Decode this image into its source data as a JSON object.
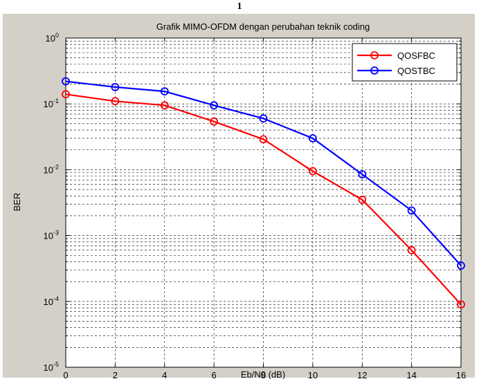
{
  "figure_number": "1",
  "chart_data": {
    "type": "line",
    "title": "Grafik MIMO-OFDM dengan perubahan teknik coding",
    "xlabel": "Eb/N0 (dB)",
    "ylabel": "BER",
    "xlim": [
      0,
      16
    ],
    "ylim": [
      1e-05,
      1
    ],
    "yscale": "log",
    "grid": true,
    "legend_position": "top-right",
    "x": [
      0,
      2,
      4,
      6,
      8,
      10,
      12,
      14,
      16
    ],
    "x_ticks": [
      "0",
      "2",
      "4",
      "6",
      "8",
      "10",
      "12",
      "14",
      "16"
    ],
    "y_ticks": [
      {
        "base": "10",
        "exp": "0",
        "value": 1
      },
      {
        "base": "10",
        "exp": "-1",
        "value": 0.1
      },
      {
        "base": "10",
        "exp": "-2",
        "value": 0.01
      },
      {
        "base": "10",
        "exp": "-3",
        "value": 0.001
      },
      {
        "base": "10",
        "exp": "-4",
        "value": 0.0001
      },
      {
        "base": "10",
        "exp": "-5",
        "value": 1e-05
      }
    ],
    "series": [
      {
        "name": "QOSFBC",
        "color": "#ff0000",
        "marker": "circle",
        "values": [
          0.14,
          0.11,
          0.095,
          0.054,
          0.029,
          0.0095,
          0.0035,
          0.0006,
          9e-05
        ]
      },
      {
        "name": "QOSTBC",
        "color": "#0000ff",
        "marker": "circle",
        "values": [
          0.22,
          0.18,
          0.155,
          0.095,
          0.06,
          0.03,
          0.0085,
          0.0024,
          0.00035
        ]
      }
    ]
  }
}
